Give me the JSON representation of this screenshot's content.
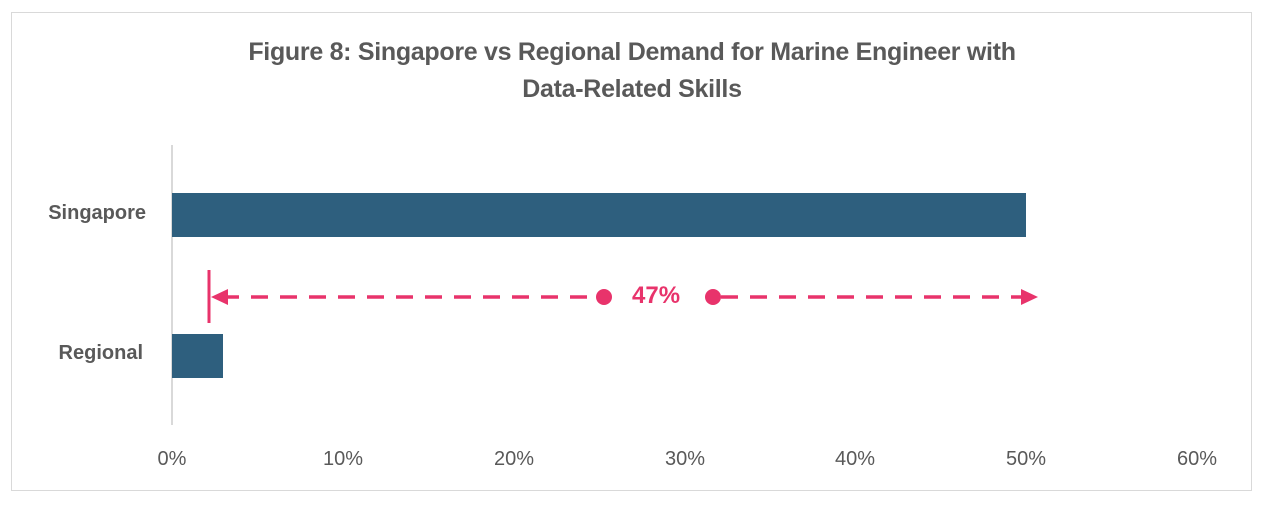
{
  "chart_data": {
    "type": "bar",
    "orientation": "horizontal",
    "title": "Figure 8: Singapore vs Regional Demand for Marine Engineer with Data-Related Skills",
    "title_lines": [
      "Figure 8: Singapore vs Regional Demand for Marine Engineer with",
      "Data-Related Skills"
    ],
    "categories": [
      "Singapore",
      "Regional"
    ],
    "values": [
      50,
      3
    ],
    "unit": "%",
    "xlabel": "",
    "ylabel": "",
    "xlim": [
      0,
      60
    ],
    "x_ticks": [
      "0%",
      "10%",
      "20%",
      "30%",
      "40%",
      "50%",
      "60%"
    ],
    "grid": false,
    "legend": null,
    "annotations": [
      {
        "type": "difference-arrow",
        "label": "47%",
        "from": 3,
        "to": 50,
        "color": "#e8336b"
      }
    ],
    "colors": {
      "bar": "#2e5f7e",
      "annotation": "#e8336b",
      "text": "#595959",
      "axis": "#d9d9d9"
    }
  }
}
